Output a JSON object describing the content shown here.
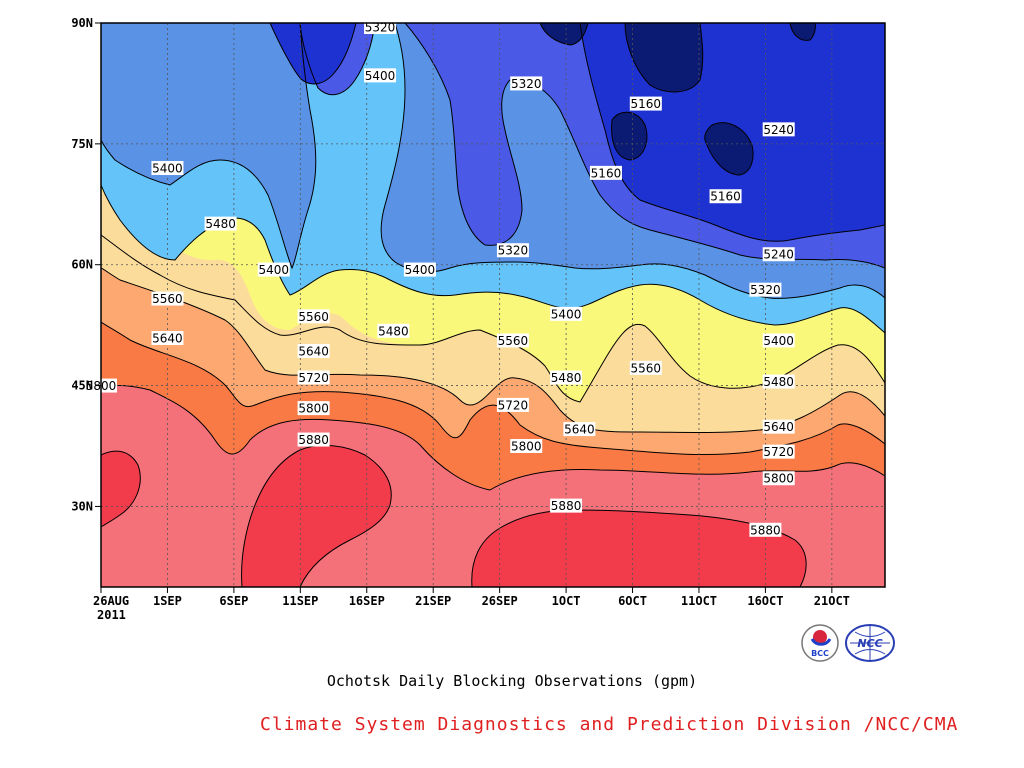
{
  "title": "Ochotsk Daily Blocking Observations (gpm)",
  "credit": "Climate System Diagnostics and Prediction Division /NCC/CMA",
  "logos": {
    "left": "BCC",
    "right": "NCC"
  },
  "chart_data": {
    "type": "contour",
    "x_ticks": [
      "26AUG",
      "1SEP",
      "6SEP",
      "11SEP",
      "16SEP",
      "21SEP",
      "26SEP",
      "1OCT",
      "6OCT",
      "11OCT",
      "16OCT",
      "21OCT"
    ],
    "x_year": "2011",
    "y_ticks": [
      "90N",
      "75N",
      "60N",
      "45N",
      "30N"
    ],
    "x_range": [
      "2011-08-26",
      "2011-10-24"
    ],
    "y_range": [
      20,
      90
    ],
    "levels": [
      5160,
      5240,
      5320,
      5400,
      5480,
      5560,
      5640,
      5720,
      5800,
      5880
    ],
    "colors": {
      "below_5160": "#0b1a73",
      "5160_5240": "#1e32d2",
      "5240_5320": "#4a5ae6",
      "5320_5400": "#5a92e6",
      "5400_5480": "#64c4fa",
      "5480_5560": "#faf87a",
      "5560_5640": "#fcdc9a",
      "5640_5720": "#fca870",
      "5720_5800": "#fa7a46",
      "5800_5880": "#f5717a",
      "above_5880": "#f23c4c"
    },
    "contour_labels": [
      {
        "value": "5320",
        "date": "2011-09-16",
        "lat": 89.5
      },
      {
        "value": "5400",
        "date": "2011-09-16",
        "lat": 83.5
      },
      {
        "value": "5320",
        "date": "2011-09-27",
        "lat": 82.5
      },
      {
        "value": "5160",
        "date": "2011-10-06",
        "lat": 80.0
      },
      {
        "value": "5240",
        "date": "2011-10-16",
        "lat": 76.8
      },
      {
        "value": "5160",
        "date": "2011-10-03",
        "lat": 71.4
      },
      {
        "value": "5160",
        "date": "2011-10-12",
        "lat": 68.5
      },
      {
        "value": "5400",
        "date": "2011-08-31",
        "lat": 72.0
      },
      {
        "value": "5480",
        "date": "2011-09-04",
        "lat": 65.1
      },
      {
        "value": "5400",
        "date": "2011-09-08",
        "lat": 59.4
      },
      {
        "value": "5400",
        "date": "2011-09-19",
        "lat": 59.4
      },
      {
        "value": "5320",
        "date": "2011-09-26",
        "lat": 61.8
      },
      {
        "value": "5240",
        "date": "2011-10-16",
        "lat": 61.3
      },
      {
        "value": "5320",
        "date": "2011-10-15",
        "lat": 56.9
      },
      {
        "value": "5560",
        "date": "2011-08-31",
        "lat": 55.8
      },
      {
        "value": "5560",
        "date": "2011-09-11",
        "lat": 53.6
      },
      {
        "value": "5480",
        "date": "2011-09-17",
        "lat": 51.8
      },
      {
        "value": "5400",
        "date": "2011-09-30",
        "lat": 53.9
      },
      {
        "value": "5560",
        "date": "2011-09-26",
        "lat": 50.6
      },
      {
        "value": "5400",
        "date": "2011-10-16",
        "lat": 50.6
      },
      {
        "value": "5640",
        "date": "2011-08-31",
        "lat": 50.9
      },
      {
        "value": "5640",
        "date": "2011-09-11",
        "lat": 49.3
      },
      {
        "value": "5560",
        "date": "2011-10-06",
        "lat": 47.2
      },
      {
        "value": "5480",
        "date": "2011-09-30",
        "lat": 46.0
      },
      {
        "value": "5480",
        "date": "2011-10-16",
        "lat": 45.5
      },
      {
        "value": "5720",
        "date": "2011-09-11",
        "lat": 46.0
      },
      {
        "value": "5800",
        "date": "2011-08-26",
        "lat": 45.0
      },
      {
        "value": "5720",
        "date": "2011-09-26",
        "lat": 42.6
      },
      {
        "value": "5800",
        "date": "2011-09-11",
        "lat": 42.2
      },
      {
        "value": "5640",
        "date": "2011-10-01",
        "lat": 39.6
      },
      {
        "value": "5640",
        "date": "2011-10-16",
        "lat": 39.9
      },
      {
        "value": "5880",
        "date": "2011-09-11",
        "lat": 38.3
      },
      {
        "value": "5800",
        "date": "2011-09-27",
        "lat": 37.5
      },
      {
        "value": "5720",
        "date": "2011-10-16",
        "lat": 36.8
      },
      {
        "value": "5800",
        "date": "2011-10-16",
        "lat": 33.5
      },
      {
        "value": "5880",
        "date": "2011-09-30",
        "lat": 30.1
      },
      {
        "value": "5880",
        "date": "2011-10-15",
        "lat": 27.1
      }
    ]
  }
}
